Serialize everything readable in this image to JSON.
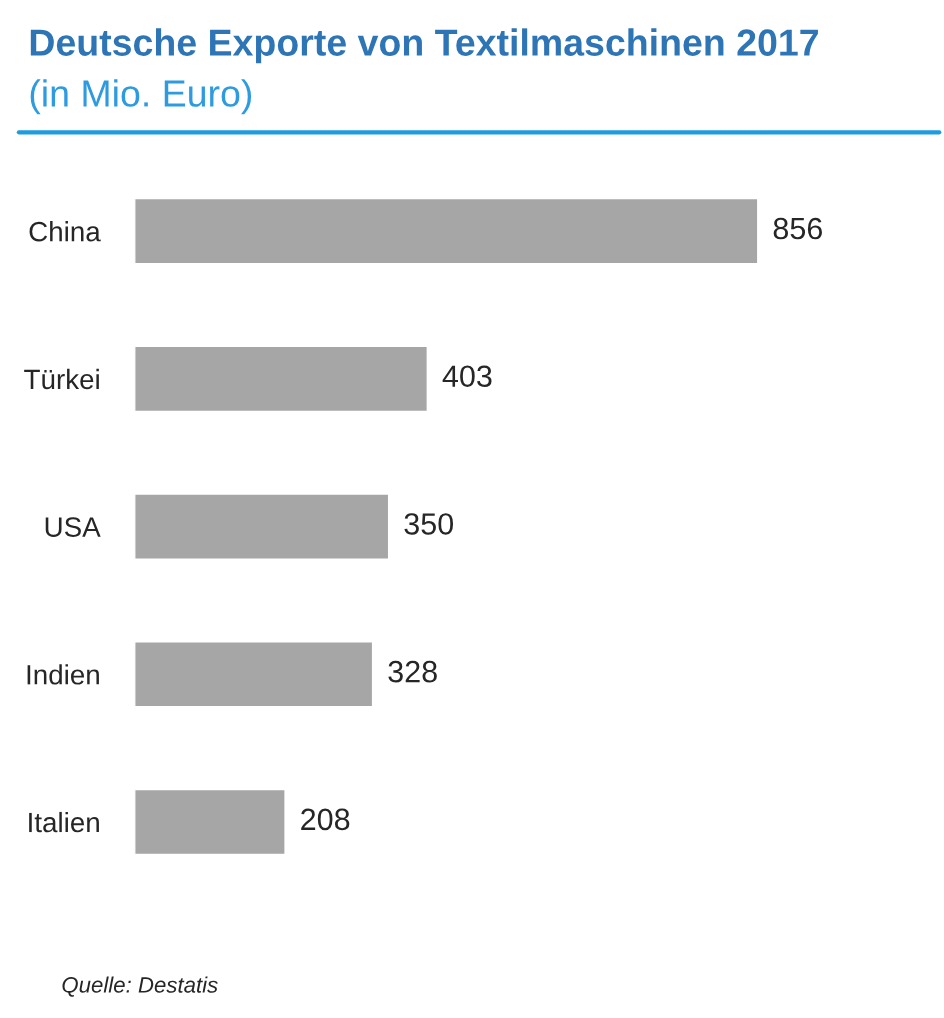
{
  "chart_data": {
    "type": "bar",
    "orientation": "horizontal",
    "title": "Deutsche Exporte von Textilmaschinen 2017",
    "subtitle": "(in Mio. Euro)",
    "categories": [
      "China",
      "Türkei",
      "USA",
      "Indien",
      "Italien"
    ],
    "values": [
      856,
      403,
      350,
      328,
      208
    ],
    "color": "#a6a6a6",
    "data_labels": true,
    "xlim": [
      0,
      1100
    ],
    "tick_labels": "y",
    "grid": false,
    "legend": false,
    "annotations": [
      "Quelle: Destatis"
    ]
  }
}
